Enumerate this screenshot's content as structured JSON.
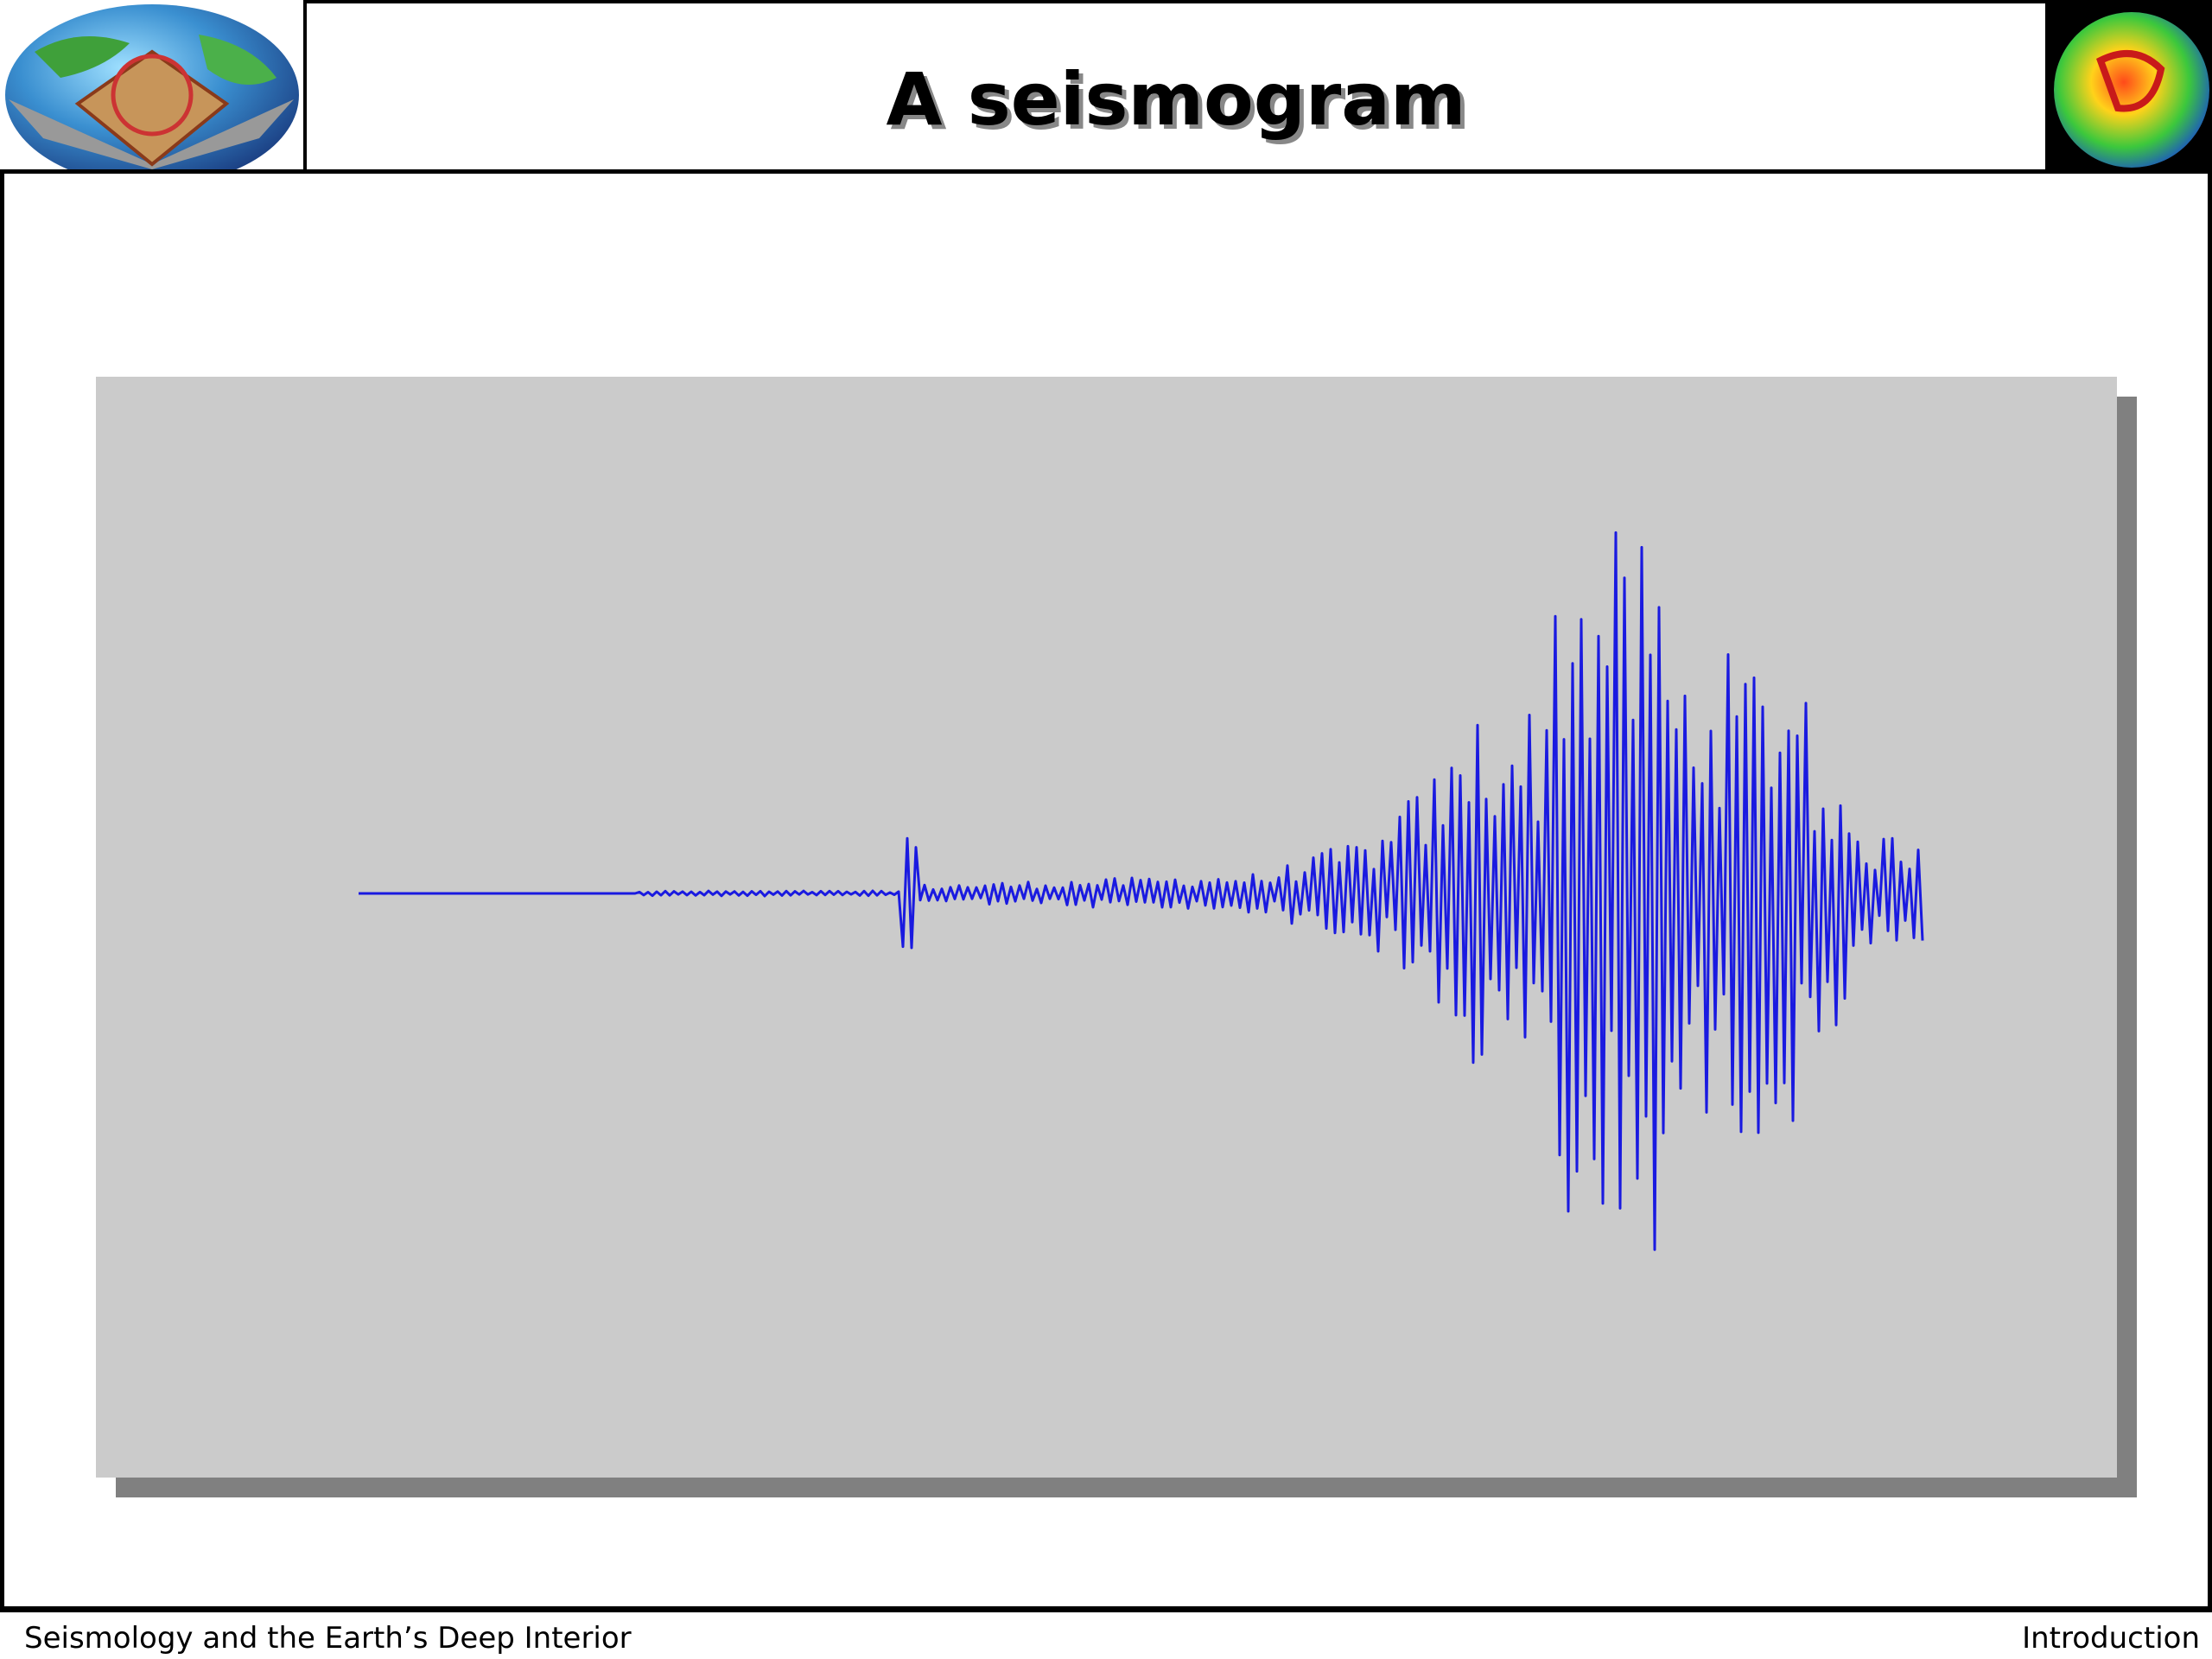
{
  "header": {
    "title": "A seismogram"
  },
  "footer": {
    "left": "Seismology and the Earth’s Deep Interior",
    "right": "Introduction"
  }
}
